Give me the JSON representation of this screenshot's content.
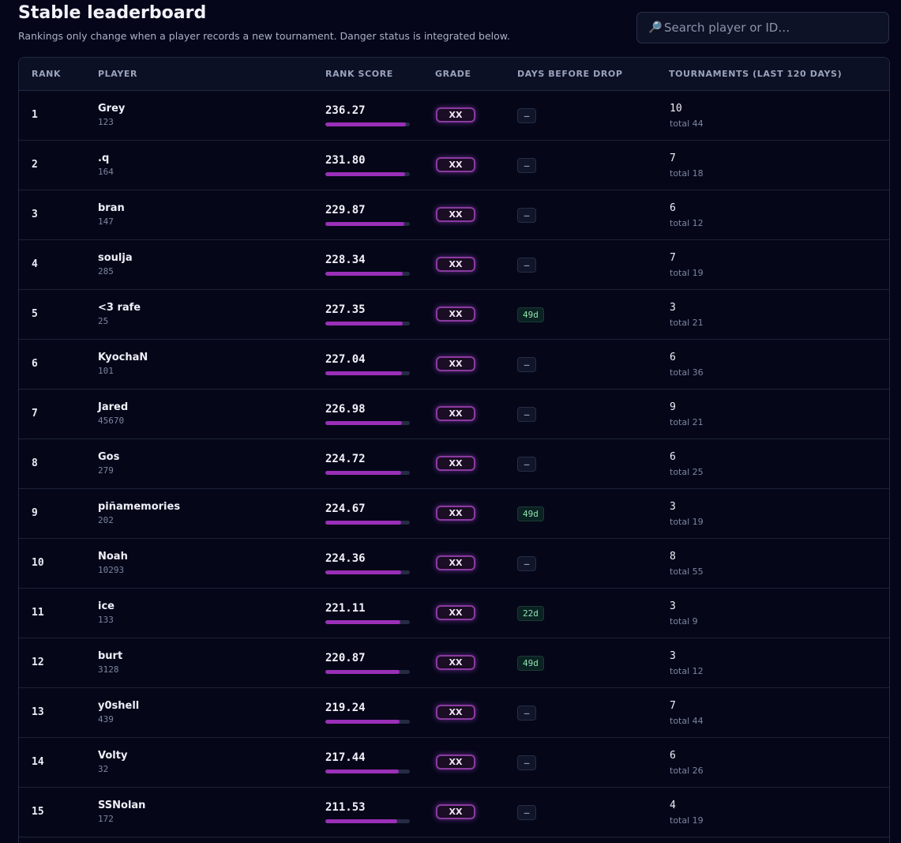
{
  "header": {
    "title": "Stable leaderboard",
    "subtitle": "Rankings only change when a player records a new tournament. Danger status is integrated below."
  },
  "search": {
    "icon": "magnifier-icon",
    "placeholder": "Search player or ID…",
    "value": ""
  },
  "colors": {
    "background": "#05061a",
    "score_bar": "#9a2fb8",
    "grade_glow": "#8a3aa0",
    "drop_safe_text": "#8fe3b0"
  },
  "columns": {
    "rank": "RANK",
    "player": "PLAYER",
    "rank_score": "RANK SCORE",
    "grade": "GRADE",
    "days_before_drop": "DAYS BEFORE DROP",
    "tournaments": "TOURNAMENTS (LAST 120 DAYS)"
  },
  "rows": [
    {
      "rank": "1",
      "name": "Grey",
      "id": "123",
      "score": "236.27",
      "score_fraction": 0.95,
      "grade": "XX",
      "drop": "–",
      "drop_status": "neutral",
      "tournaments": "10",
      "total": "total 44"
    },
    {
      "rank": "2",
      "name": ".q",
      "id": "164",
      "score": "231.80",
      "score_fraction": 0.94,
      "grade": "XX",
      "drop": "–",
      "drop_status": "neutral",
      "tournaments": "7",
      "total": "total 18"
    },
    {
      "rank": "3",
      "name": "bran",
      "id": "147",
      "score": "229.87",
      "score_fraction": 0.93,
      "grade": "XX",
      "drop": "–",
      "drop_status": "neutral",
      "tournaments": "6",
      "total": "total 12"
    },
    {
      "rank": "4",
      "name": "soulja",
      "id": "285",
      "score": "228.34",
      "score_fraction": 0.92,
      "grade": "XX",
      "drop": "–",
      "drop_status": "neutral",
      "tournaments": "7",
      "total": "total 19"
    },
    {
      "rank": "5",
      "name": "<3 rafe",
      "id": "25",
      "score": "227.35",
      "score_fraction": 0.92,
      "grade": "XX",
      "drop": "49d",
      "drop_status": "safe",
      "tournaments": "3",
      "total": "total 21"
    },
    {
      "rank": "6",
      "name": "KyochaN",
      "id": "101",
      "score": "227.04",
      "score_fraction": 0.91,
      "grade": "XX",
      "drop": "–",
      "drop_status": "neutral",
      "tournaments": "6",
      "total": "total 36"
    },
    {
      "rank": "7",
      "name": "Jared",
      "id": "45670",
      "score": "226.98",
      "score_fraction": 0.91,
      "grade": "XX",
      "drop": "–",
      "drop_status": "neutral",
      "tournaments": "9",
      "total": "total 21"
    },
    {
      "rank": "8",
      "name": "Gos",
      "id": "279",
      "score": "224.72",
      "score_fraction": 0.9,
      "grade": "XX",
      "drop": "–",
      "drop_status": "neutral",
      "tournaments": "6",
      "total": "total 25"
    },
    {
      "rank": "9",
      "name": "piñamemories",
      "id": "202",
      "score": "224.67",
      "score_fraction": 0.9,
      "grade": "XX",
      "drop": "49d",
      "drop_status": "safe",
      "tournaments": "3",
      "total": "total 19"
    },
    {
      "rank": "10",
      "name": "Noah",
      "id": "10293",
      "score": "224.36",
      "score_fraction": 0.9,
      "grade": "XX",
      "drop": "–",
      "drop_status": "neutral",
      "tournaments": "8",
      "total": "total 55"
    },
    {
      "rank": "11",
      "name": "ice",
      "id": "133",
      "score": "221.11",
      "score_fraction": 0.89,
      "grade": "XX",
      "drop": "22d",
      "drop_status": "safe",
      "tournaments": "3",
      "total": "total 9"
    },
    {
      "rank": "12",
      "name": "burt",
      "id": "3128",
      "score": "220.87",
      "score_fraction": 0.88,
      "grade": "XX",
      "drop": "49d",
      "drop_status": "safe",
      "tournaments": "3",
      "total": "total 12"
    },
    {
      "rank": "13",
      "name": "y0shell",
      "id": "439",
      "score": "219.24",
      "score_fraction": 0.88,
      "grade": "XX",
      "drop": "–",
      "drop_status": "neutral",
      "tournaments": "7",
      "total": "total 44"
    },
    {
      "rank": "14",
      "name": "Volty",
      "id": "32",
      "score": "217.44",
      "score_fraction": 0.87,
      "grade": "XX",
      "drop": "–",
      "drop_status": "neutral",
      "tournaments": "6",
      "total": "total 26"
    },
    {
      "rank": "15",
      "name": "SSNolan",
      "id": "172",
      "score": "211.53",
      "score_fraction": 0.85,
      "grade": "XX",
      "drop": "–",
      "drop_status": "neutral",
      "tournaments": "4",
      "total": "total 19"
    }
  ]
}
